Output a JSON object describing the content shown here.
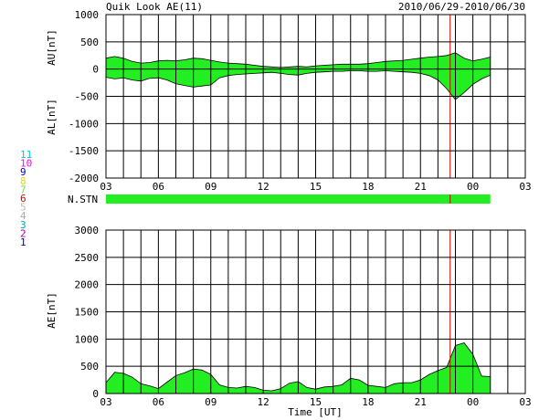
{
  "header": {
    "title": "Quik Look AE(11)",
    "date_range": "2010/06/29-2010/06/30"
  },
  "station_legend": [
    {
      "label": "11",
      "color": "#00cccc"
    },
    {
      "label": "10",
      "color": "#ff00ff"
    },
    {
      "label": "9",
      "color": "#0000cc"
    },
    {
      "label": "8",
      "color": "#dddd00"
    },
    {
      "label": "7",
      "color": "#66dd66"
    },
    {
      "label": "6",
      "color": "#dd0000"
    },
    {
      "label": "5",
      "color": "#bbbbbb"
    },
    {
      "label": "4",
      "color": "#aaaaaa"
    },
    {
      "label": "3",
      "color": "#00aaaa"
    },
    {
      "label": "2",
      "color": "#aa00aa"
    },
    {
      "label": "1",
      "color": "#0000aa"
    }
  ],
  "colors": {
    "fill": "#22ee22",
    "marker": "#cc0000",
    "grid": "#000000"
  },
  "chart_data": [
    {
      "type": "area",
      "ylabel_top": "AU[nT]",
      "ylabel_bottom": "AL[nT]",
      "ylim": [
        -2000,
        1000
      ],
      "yticks": [
        "1000",
        "500",
        "0",
        "-500",
        "-1000",
        "-1500",
        "-2000"
      ],
      "xlim": [
        3,
        27
      ],
      "xticks": [
        "03",
        "06",
        "09",
        "12",
        "15",
        "18",
        "21",
        "00",
        "03"
      ],
      "marker_x": 22.7,
      "x": [
        3.0,
        3.5,
        4.0,
        4.5,
        5.0,
        5.5,
        6.0,
        6.5,
        7.0,
        7.5,
        8.0,
        8.5,
        9.0,
        9.5,
        10.0,
        10.5,
        11.0,
        11.5,
        12.0,
        12.5,
        13.0,
        13.5,
        14.0,
        14.5,
        15.0,
        15.5,
        16.0,
        16.5,
        17.0,
        17.5,
        18.0,
        18.5,
        19.0,
        19.5,
        20.0,
        20.5,
        21.0,
        21.5,
        22.0,
        22.5,
        23.0,
        23.5,
        24.0,
        24.5,
        25.0
      ],
      "series": [
        {
          "values": [
            200,
            230,
            200,
            140,
            110,
            120,
            150,
            160,
            150,
            170,
            200,
            190,
            160,
            130,
            110,
            100,
            90,
            70,
            50,
            40,
            30,
            40,
            50,
            40,
            60,
            70,
            80,
            90,
            90,
            90,
            100,
            120,
            140,
            150,
            160,
            180,
            200,
            220,
            230,
            250,
            300,
            200,
            150,
            180,
            220
          ]
        },
        {
          "values": [
            -150,
            -180,
            -160,
            -200,
            -220,
            -170,
            -160,
            -200,
            -270,
            -300,
            -330,
            -310,
            -290,
            -160,
            -120,
            -100,
            -90,
            -80,
            -70,
            -60,
            -80,
            -100,
            -110,
            -80,
            -60,
            -50,
            -40,
            -40,
            -30,
            -30,
            -40,
            -40,
            -30,
            -40,
            -50,
            -60,
            -80,
            -120,
            -200,
            -360,
            -560,
            -430,
            -280,
            -180,
            -110
          ]
        }
      ]
    },
    {
      "type": "bar",
      "label": "N.STN",
      "xlim": [
        3,
        27
      ],
      "x": [
        3.0,
        25.0
      ],
      "marker_x": 22.7
    },
    {
      "type": "area",
      "ylabel": "AE[nT]",
      "xlabel": "Time [UT]",
      "ylim": [
        0,
        3000
      ],
      "yticks": [
        "3000",
        "2500",
        "2000",
        "1500",
        "1000",
        "500",
        "0"
      ],
      "xlim": [
        3,
        27
      ],
      "xticks": [
        "03",
        "06",
        "09",
        "12",
        "15",
        "18",
        "21",
        "00",
        "03"
      ],
      "marker_x": 22.7,
      "x": [
        3.0,
        3.5,
        4.0,
        4.5,
        5.0,
        5.5,
        6.0,
        6.5,
        7.0,
        7.5,
        8.0,
        8.5,
        9.0,
        9.5,
        10.0,
        10.5,
        11.0,
        11.5,
        12.0,
        12.5,
        13.0,
        13.5,
        14.0,
        14.5,
        15.0,
        15.5,
        16.0,
        16.5,
        17.0,
        17.5,
        18.0,
        18.5,
        19.0,
        19.5,
        20.0,
        20.5,
        21.0,
        21.5,
        22.0,
        22.5,
        23.0,
        23.5,
        24.0,
        24.5,
        25.0
      ],
      "series": [
        {
          "values": [
            200,
            390,
            370,
            300,
            180,
            140,
            90,
            210,
            330,
            380,
            450,
            430,
            350,
            160,
            110,
            100,
            130,
            110,
            60,
            50,
            90,
            190,
            220,
            110,
            80,
            120,
            130,
            160,
            280,
            250,
            150,
            130,
            110,
            180,
            200,
            200,
            250,
            350,
            420,
            480,
            880,
            930,
            720,
            320,
            310
          ]
        }
      ]
    }
  ]
}
